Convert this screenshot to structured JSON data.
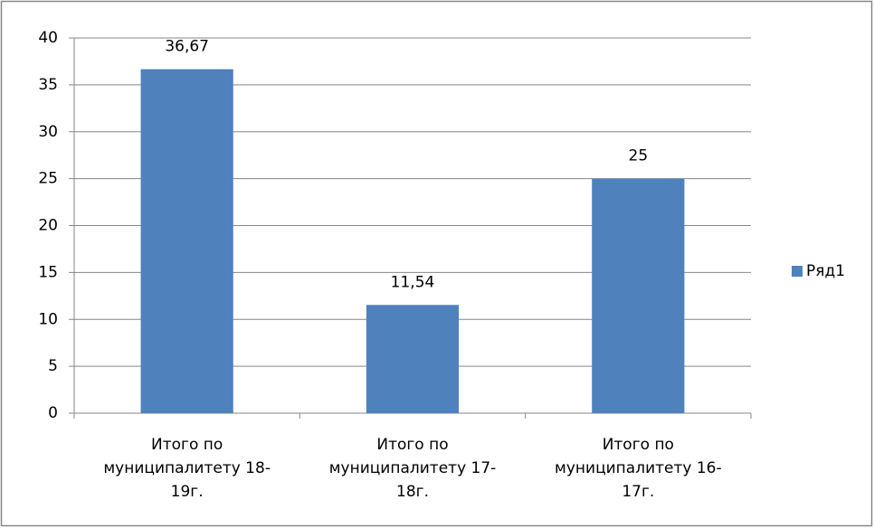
{
  "chart_data": {
    "type": "bar",
    "categories": [
      "Итого по\nмуниципалитету 18-\n19г.",
      "Итого по\nмуниципалитету 17-\n18г.",
      "Итого по\nмуниципалитету 16-\n17г."
    ],
    "series": [
      {
        "name": "Ряд1",
        "color": "#4f81bd",
        "values": [
          36.67,
          11.54,
          25
        ],
        "value_labels": [
          "36,67",
          "11,54",
          "25"
        ]
      }
    ],
    "ylim": [
      0,
      40
    ],
    "yticks": [
      0,
      5,
      10,
      15,
      20,
      25,
      30,
      35,
      40
    ],
    "grid": true,
    "legend": "right"
  }
}
